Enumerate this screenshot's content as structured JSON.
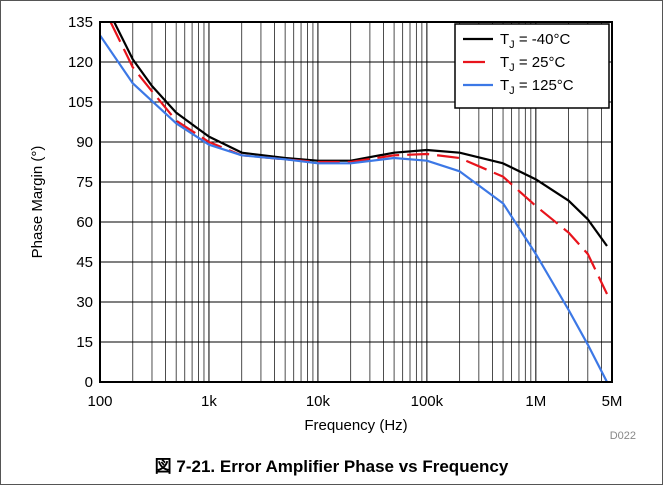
{
  "chart_data": {
    "type": "line",
    "xlabel": "Frequency (Hz)",
    "ylabel": "Phase Margin (°)",
    "x_scale": "log",
    "xlim": [
      100,
      5000000
    ],
    "ylim": [
      0,
      135
    ],
    "x_ticks": [
      {
        "value": 100,
        "label": "100"
      },
      {
        "value": 1000,
        "label": "1k"
      },
      {
        "value": 10000,
        "label": "10k"
      },
      {
        "value": 100000,
        "label": "100k"
      },
      {
        "value": 1000000,
        "label": "1M"
      },
      {
        "value": 5000000,
        "label": "5M"
      }
    ],
    "y_ticks": [
      0,
      15,
      30,
      45,
      60,
      75,
      90,
      105,
      120,
      135
    ],
    "grid": true,
    "legend_position": "top-right",
    "series": [
      {
        "name_prefix": "T",
        "name_sub": "J",
        "name_suffix": " = -40°C",
        "color": "#000000",
        "dashed": false,
        "points": [
          [
            135,
            135
          ],
          [
            200,
            121
          ],
          [
            300,
            111
          ],
          [
            500,
            101
          ],
          [
            1000,
            92
          ],
          [
            2000,
            86
          ],
          [
            5000,
            84
          ],
          [
            10000,
            83
          ],
          [
            20000,
            83
          ],
          [
            50000,
            86
          ],
          [
            100000,
            87
          ],
          [
            200000,
            86
          ],
          [
            500000,
            82
          ],
          [
            1000000,
            76
          ],
          [
            2000000,
            68
          ],
          [
            3000000,
            61
          ],
          [
            4500000,
            51
          ]
        ]
      },
      {
        "name_prefix": "T",
        "name_sub": "J",
        "name_suffix": " = 25°C",
        "color": "#e8141c",
        "dashed": true,
        "points": [
          [
            125,
            135
          ],
          [
            200,
            118
          ],
          [
            300,
            109
          ],
          [
            500,
            98
          ],
          [
            1000,
            90
          ],
          [
            2000,
            85
          ],
          [
            5000,
            83.5
          ],
          [
            10000,
            82.5
          ],
          [
            20000,
            82.5
          ],
          [
            50000,
            85
          ],
          [
            100000,
            85.5
          ],
          [
            200000,
            84
          ],
          [
            500000,
            77
          ],
          [
            1000000,
            66
          ],
          [
            2000000,
            56
          ],
          [
            3000000,
            48
          ],
          [
            4500000,
            33
          ]
        ]
      },
      {
        "name_prefix": "T",
        "name_sub": "J",
        "name_suffix": " = 125°C",
        "color": "#3c78e6",
        "dashed": false,
        "points": [
          [
            100,
            130
          ],
          [
            200,
            112
          ],
          [
            500,
            97
          ],
          [
            1000,
            89
          ],
          [
            2000,
            85
          ],
          [
            5000,
            83.5
          ],
          [
            10000,
            82
          ],
          [
            20000,
            82
          ],
          [
            50000,
            84
          ],
          [
            100000,
            83
          ],
          [
            200000,
            79
          ],
          [
            500000,
            67
          ],
          [
            1000000,
            48
          ],
          [
            2000000,
            27
          ],
          [
            3000000,
            14
          ],
          [
            4500000,
            0
          ]
        ]
      }
    ]
  },
  "figure_id": "D022",
  "caption": "図 7-21. Error Amplifier Phase vs Frequency"
}
